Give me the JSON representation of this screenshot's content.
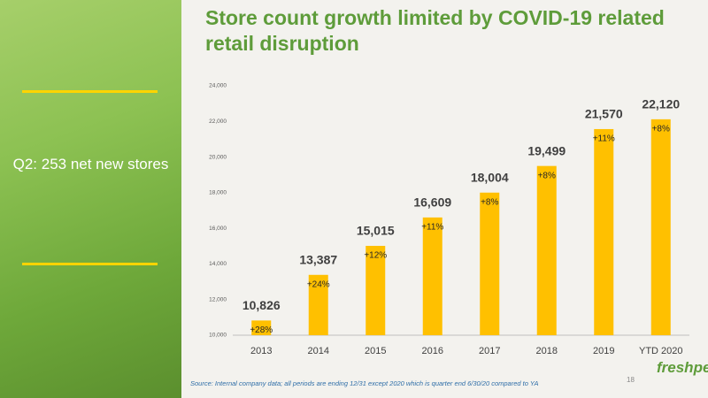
{
  "sidebar": {
    "text": "Q2: 253 net new stores"
  },
  "chart_data": {
    "type": "bar",
    "title": "Store count growth limited by COVID-19 related retail disruption",
    "categories": [
      "2013",
      "2014",
      "2015",
      "2016",
      "2017",
      "2018",
      "2019",
      "YTD 2020"
    ],
    "values": [
      10826,
      13387,
      15015,
      16609,
      18004,
      19499,
      21570,
      22120
    ],
    "value_labels": [
      "10,826",
      "13,387",
      "15,015",
      "16,609",
      "18,004",
      "19,499",
      "21,570",
      "22,120"
    ],
    "growth_labels": [
      "+28%",
      "+24%",
      "+12%",
      "+11%",
      "+8%",
      "+8%",
      "+11%",
      "+8%"
    ],
    "color": "#ffc000",
    "ylim": [
      10000,
      24000
    ],
    "yticks": [
      {
        "value": 10000,
        "label": "10,000"
      },
      {
        "value": 12000,
        "label": "12,000"
      },
      {
        "value": 14000,
        "label": "14,000"
      },
      {
        "value": 16000,
        "label": "16,000"
      },
      {
        "value": 18000,
        "label": "18,000"
      },
      {
        "value": 20000,
        "label": "20,000"
      },
      {
        "value": 22000,
        "label": "22,000"
      },
      {
        "value": 24000,
        "label": "24,000"
      }
    ],
    "grid": false
  },
  "source": "Source:  Internal company data; all periods are ending 12/31 except 2020  which is quarter end 6/30/20  compared to YA",
  "page_number": 18,
  "logo": "freshpet"
}
